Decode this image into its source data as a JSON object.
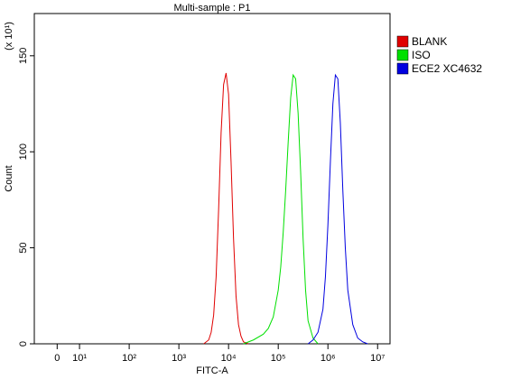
{
  "chart_data": {
    "type": "line",
    "title": "Multi-sample : P1",
    "x_label": "FITC-A",
    "y_label": "Count",
    "y_multiplier": "(x 10¹)",
    "xlim": [
      0.09,
      7.25
    ],
    "ylim": [
      0,
      172
    ],
    "xticks": [
      {
        "value": 0.55,
        "label": "0"
      },
      {
        "value": 1,
        "label": "10¹"
      },
      {
        "value": 2,
        "label": "10²"
      },
      {
        "value": 3,
        "label": "10³"
      },
      {
        "value": 4,
        "label": "10⁴"
      },
      {
        "value": 5,
        "label": "10⁵"
      },
      {
        "value": 6,
        "label": "10⁶"
      },
      {
        "value": 7,
        "label": "10⁷"
      }
    ],
    "yticks": [
      0,
      50,
      100,
      150
    ],
    "legend": "right",
    "series": [
      {
        "name": "BLANK",
        "color": "#e00000",
        "x": [
          3.5,
          3.6,
          3.65,
          3.7,
          3.75,
          3.8,
          3.85,
          3.9,
          3.95,
          4.0,
          4.05,
          4.1,
          4.15,
          4.2,
          4.25,
          4.3,
          4.4
        ],
        "values": [
          0,
          2,
          6,
          15,
          35,
          70,
          110,
          135,
          141,
          130,
          95,
          55,
          25,
          10,
          4,
          1,
          0
        ]
      },
      {
        "name": "ISO",
        "color": "#00e000",
        "x": [
          4.3,
          4.5,
          4.7,
          4.8,
          4.9,
          5.0,
          5.05,
          5.1,
          5.15,
          5.2,
          5.25,
          5.3,
          5.35,
          5.4,
          5.45,
          5.5,
          5.55,
          5.6,
          5.7,
          5.8
        ],
        "values": [
          0,
          2,
          5,
          8,
          14,
          28,
          40,
          58,
          80,
          105,
          128,
          140,
          138,
          120,
          90,
          55,
          28,
          12,
          3,
          0
        ]
      },
      {
        "name": "ECE2 XC4632",
        "color": "#0000e0",
        "x": [
          5.6,
          5.7,
          5.8,
          5.9,
          5.95,
          6.0,
          6.05,
          6.1,
          6.15,
          6.2,
          6.25,
          6.3,
          6.35,
          6.4,
          6.5,
          6.6,
          6.7,
          6.8
        ],
        "values": [
          0,
          2,
          6,
          18,
          35,
          62,
          95,
          125,
          140,
          138,
          115,
          80,
          50,
          28,
          10,
          3,
          1,
          0
        ]
      }
    ]
  }
}
